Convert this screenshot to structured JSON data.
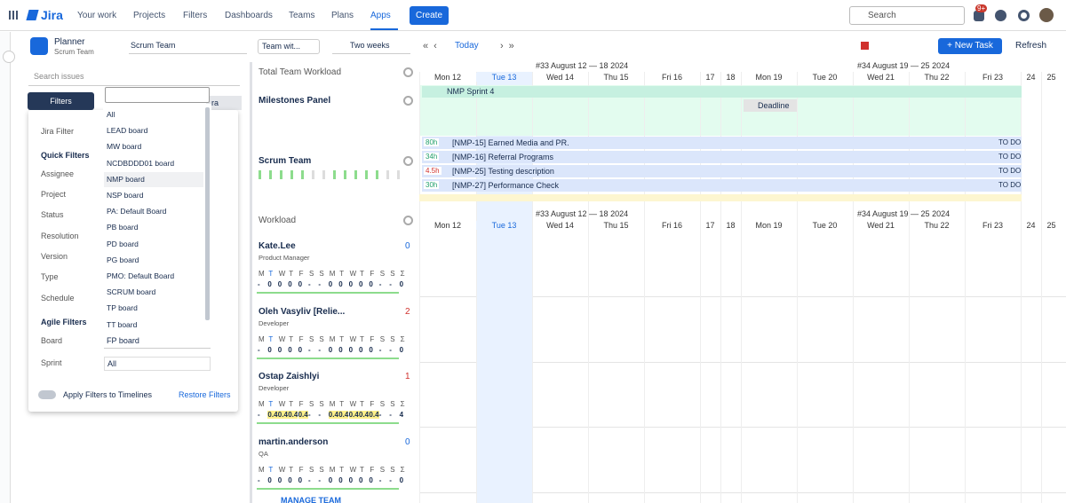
{
  "nav": {
    "logo": "Jira",
    "items": [
      "Your work",
      "Projects",
      "Filters",
      "Dashboards",
      "Teams",
      "Plans",
      "Apps"
    ],
    "create": "Create",
    "search": "Search",
    "badge": "9+"
  },
  "planner": {
    "title": "Planner",
    "subtitle": "Scrum Team",
    "team_select": "Scrum Team",
    "view_select": "Team wit...",
    "period": "Two weeks",
    "today": "Today",
    "new_task": "+ New Task",
    "refresh": "Refresh"
  },
  "filters": {
    "search": "Search issues",
    "button": "Filters",
    "behind": "ra",
    "labels": [
      "Jira Filter",
      "Quick Filters",
      "Assignee",
      "Project",
      "Status",
      "Resolution",
      "Version",
      "Type",
      "Schedule",
      "Agile Filters",
      "Board",
      "Sprint"
    ],
    "board_value": "FP board",
    "sprint_value": "All",
    "toggle": "Apply Filters to Timelines",
    "restore": "Restore Filters",
    "options": [
      "All",
      "LEAD board",
      "MW board",
      "NCDBDDD01 board",
      "NMP board",
      "NSP board",
      "PA: Default Board",
      "PB board",
      "PD board",
      "PG board",
      "PMO: Default Board",
      "SCRUM board",
      "TP board",
      "TT board"
    ]
  },
  "panels": {
    "total": "Total Team Workload",
    "milestones": "Milestones Panel",
    "team": "Scrum Team",
    "workload": "Workload",
    "manage": "MANAGE TEAM"
  },
  "timeline": {
    "weeks": [
      "#33 August 12 — 18 2024",
      "#34 August 19 — 25 2024"
    ],
    "days": [
      "Mon 12",
      "Tue 13",
      "Wed 14",
      "Thu 15",
      "Fri 16",
      "17",
      "18",
      "Mon 19",
      "Tue 20",
      "Wed 21",
      "Thu 22",
      "Fri 23",
      "24",
      "25"
    ],
    "sprint": "NMP Sprint 4",
    "milestone": "Deadline",
    "tasks": [
      {
        "hours": "80h",
        "title": "[NMP-15] Earned Media and PR.",
        "status": "TO DO"
      },
      {
        "hours": "34h",
        "title": "[NMP-16] Referral Programs",
        "status": "TO DO"
      },
      {
        "hours": "4.5h",
        "title": "[NMP-25] Testing description",
        "status": "TO DO"
      },
      {
        "hours": "30h",
        "title": "[NMP-27] Performance Check",
        "status": "TO DO"
      }
    ]
  },
  "workload": {
    "weekdays": [
      "M",
      "T",
      "W",
      "T",
      "F",
      "S",
      "S",
      "M",
      "T",
      "W",
      "T",
      "F",
      "S",
      "S",
      "Σ"
    ],
    "members": [
      {
        "name": "Kate.Lee",
        "role": "Product Manager",
        "count": 0,
        "values": [
          "-",
          "0",
          "0",
          "0",
          "0",
          "-",
          "-",
          "0",
          "0",
          "0",
          "0",
          "0",
          "-",
          "-",
          "0"
        ]
      },
      {
        "name": "Oleh Vasyliv [Relie...",
        "role": "Developer",
        "count": 2,
        "values": [
          "-",
          "0",
          "0",
          "0",
          "0",
          "-",
          "-",
          "0",
          "0",
          "0",
          "0",
          "0",
          "-",
          "-",
          "0"
        ]
      },
      {
        "name": "Ostap Zaishlyi",
        "role": "Developer",
        "count": 1,
        "values": [
          "-",
          "0.4",
          "0.4",
          "0.4",
          "0.4",
          "-",
          "-",
          "0.4",
          "0.4",
          "0.4",
          "0.4",
          "0.4",
          "-",
          "-",
          "4"
        ]
      },
      {
        "name": "martin.anderson",
        "role": "QA",
        "count": 0,
        "values": [
          "-",
          "0",
          "0",
          "0",
          "0",
          "-",
          "-",
          "0",
          "0",
          "0",
          "0",
          "0",
          "-",
          "-",
          "0"
        ]
      }
    ]
  }
}
